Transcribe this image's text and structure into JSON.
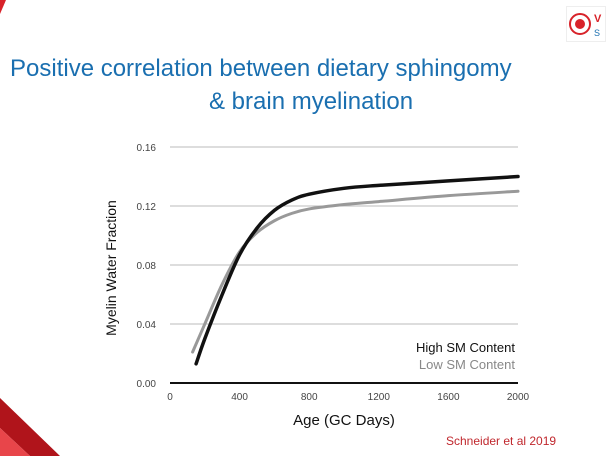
{
  "slide": {
    "title_line1": "Positive correlation between dietary sphingomy",
    "title_line2": "& brain myelination",
    "citation": "Schneider et al 2019",
    "title_color": "#1a6fb0",
    "accent_color": "#c0272d",
    "logo_text": "V S"
  },
  "chart_data": {
    "type": "line",
    "title": "",
    "xlabel": "Age (GC Days)",
    "ylabel": "Myelin Water Fraction",
    "xlim": [
      0,
      2000
    ],
    "ylim": [
      0,
      0.16
    ],
    "xticks": [
      "0",
      "400",
      "800",
      "1200",
      "1600",
      "2000"
    ],
    "yticks": [
      "0.00",
      "0.04",
      "0.08",
      "0.12",
      "0.16"
    ],
    "grid": "horizontal",
    "legend_placement": "bottom-right",
    "series": [
      {
        "name": "High SM Content",
        "color": "#111111",
        "x": [
          150,
          200,
          300,
          400,
          500,
          600,
          700,
          800,
          1000,
          1200,
          1600,
          2000
        ],
        "y": [
          0.013,
          0.03,
          0.06,
          0.087,
          0.105,
          0.117,
          0.124,
          0.128,
          0.132,
          0.134,
          0.137,
          0.14
        ]
      },
      {
        "name": "Low SM Content",
        "color": "#999999",
        "x": [
          130,
          200,
          300,
          400,
          500,
          600,
          700,
          800,
          1000,
          1200,
          1600,
          2000
        ],
        "y": [
          0.021,
          0.04,
          0.067,
          0.089,
          0.102,
          0.11,
          0.115,
          0.118,
          0.121,
          0.123,
          0.127,
          0.13
        ]
      }
    ]
  }
}
